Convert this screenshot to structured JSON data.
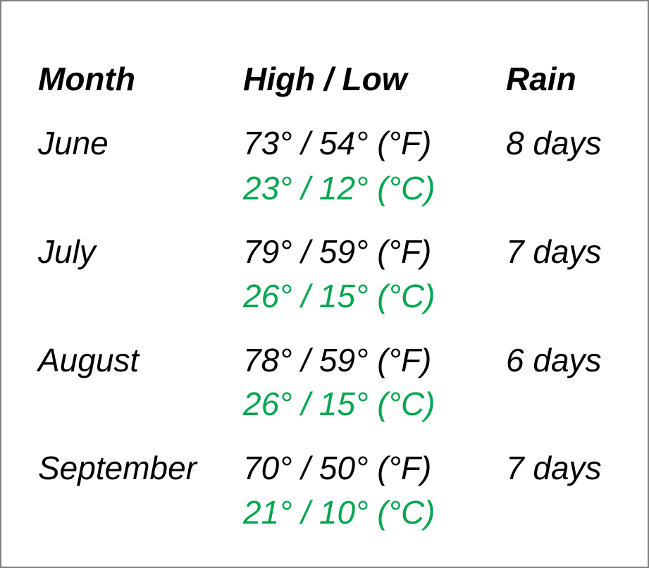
{
  "colors": {
    "celsius_text": "#00a651",
    "text": "#000000",
    "border": "#808080",
    "background": "#ffffff"
  },
  "headers": {
    "month": "Month",
    "high_low": "High / Low",
    "rain": "Rain"
  },
  "rows": [
    {
      "month": "June",
      "fahrenheit": "73° / 54° (°F)",
      "celsius": "23° / 12° (°C)",
      "rain": "8 days"
    },
    {
      "month": "July",
      "fahrenheit": "79° / 59° (°F)",
      "celsius": "26° / 15° (°C)",
      "rain": "7 days"
    },
    {
      "month": "August",
      "fahrenheit": "78° / 59° (°F)",
      "celsius": "26° / 15° (°C)",
      "rain": "6 days"
    },
    {
      "month": "September",
      "fahrenheit": "70° / 50° (°F)",
      "celsius": "21° / 10° (°C)",
      "rain": "7 days"
    }
  ]
}
